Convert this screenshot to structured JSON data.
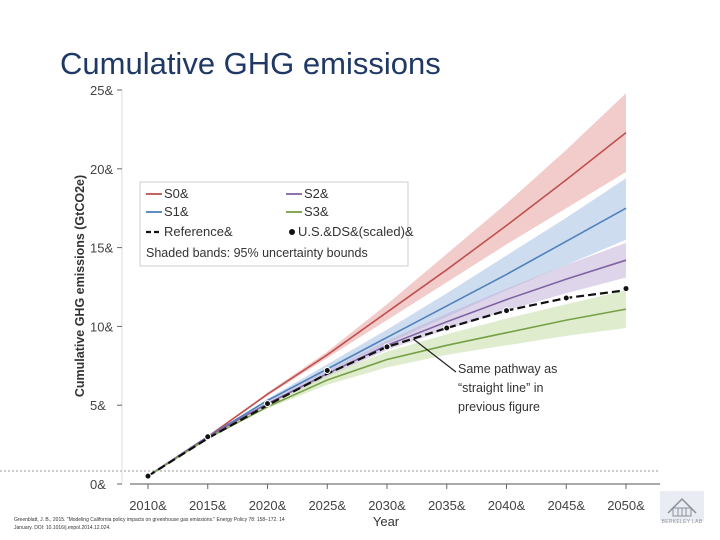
{
  "slide": {
    "title": "Cumulative GHG emissions",
    "citation_line1": "Greenblatt, J. B., 2015. \"Modeling California policy impacts on greenhouse gas emissions.\" Energy Policy 78: 158–172. 14",
    "citation_line2": "January. DOI: 10.1016/j.enpol.2014.12.024.",
    "logo_text": "BERKELEY LAB"
  },
  "chart_data": {
    "type": "line",
    "title": "Cumulative GHG emissions",
    "xlabel": "Year",
    "ylabel": "Cumulative GHG emissions (GtCO2e)",
    "x": [
      2010,
      2015,
      2020,
      2025,
      2030,
      2035,
      2040,
      2045,
      2050
    ],
    "x_tick_labels": [
      "2010&",
      "2015&",
      "2020&",
      "2025&",
      "2030&",
      "2035&",
      "2040&",
      "2045&",
      "2050&"
    ],
    "y_ticks": [
      0,
      5,
      10,
      15,
      20,
      25
    ],
    "y_tick_labels": [
      "0&",
      "5&",
      "10&",
      "15&",
      "20&",
      "25&"
    ],
    "xlim": [
      2010,
      2050
    ],
    "ylim": [
      0,
      25
    ],
    "grid": false,
    "series": [
      {
        "name": "S0&",
        "color": "#c0504d",
        "band_color": "#e8a3a1",
        "x": [
          2010,
          2015,
          2020,
          2025,
          2030,
          2035,
          2040,
          2045,
          2050
        ],
        "values": [
          0.5,
          3.0,
          5.7,
          8.2,
          10.9,
          13.6,
          16.4,
          19.3,
          22.3
        ],
        "lower": [
          0.5,
          3.0,
          5.6,
          8.0,
          10.4,
          12.8,
          15.2,
          17.5,
          19.8
        ],
        "upper": [
          0.5,
          3.0,
          5.8,
          8.4,
          11.4,
          14.6,
          17.8,
          21.2,
          24.8
        ]
      },
      {
        "name": "S1&",
        "color": "#4f81bd",
        "band_color": "#a6c0e2",
        "x": [
          2010,
          2015,
          2020,
          2025,
          2030,
          2035,
          2040,
          2045,
          2050
        ],
        "values": [
          0.5,
          3.0,
          5.3,
          7.3,
          9.3,
          11.3,
          13.3,
          15.4,
          17.5
        ],
        "lower": [
          0.5,
          3.0,
          5.2,
          7.1,
          8.9,
          10.6,
          12.3,
          13.9,
          15.5
        ],
        "upper": [
          0.5,
          3.0,
          5.4,
          7.6,
          9.8,
          12.1,
          14.5,
          16.9,
          19.4
        ]
      },
      {
        "name": "S2&",
        "color": "#8064a2",
        "band_color": "#c2b2d8",
        "x": [
          2010,
          2015,
          2020,
          2025,
          2030,
          2035,
          2040,
          2045,
          2050
        ],
        "values": [
          0.5,
          3.0,
          5.1,
          7.0,
          8.8,
          10.3,
          11.7,
          13.0,
          14.2
        ],
        "lower": [
          0.5,
          3.0,
          5.0,
          6.8,
          8.5,
          9.8,
          11.0,
          12.1,
          13.1
        ],
        "upper": [
          0.5,
          3.0,
          5.2,
          7.2,
          9.1,
          10.8,
          12.4,
          13.9,
          15.3
        ]
      },
      {
        "name": "S3&",
        "color": "#77a046",
        "band_color": "#c5dca6",
        "x": [
          2010,
          2015,
          2020,
          2025,
          2030,
          2035,
          2040,
          2045,
          2050
        ],
        "values": [
          0.5,
          2.9,
          4.9,
          6.6,
          7.9,
          8.8,
          9.6,
          10.4,
          11.1
        ],
        "lower": [
          0.5,
          2.9,
          4.8,
          6.3,
          7.4,
          8.2,
          8.8,
          9.4,
          9.9
        ],
        "upper": [
          0.5,
          2.9,
          5.0,
          6.9,
          8.4,
          9.5,
          10.5,
          11.4,
          12.3
        ]
      },
      {
        "name": "Reference&",
        "color": "#111111",
        "dashed": true,
        "x": [
          2010,
          2015,
          2020,
          2025,
          2030,
          2035,
          2040,
          2045,
          2050
        ],
        "values": [
          0.5,
          2.9,
          5.0,
          7.0,
          8.7,
          9.9,
          11.0,
          11.8,
          12.3
        ]
      }
    ],
    "points": {
      "name": "U.S.&DS&(scaled)&",
      "x": [
        2010,
        2015,
        2020,
        2025,
        2030,
        2035,
        2040,
        2045,
        2050
      ],
      "values": [
        0.5,
        3.0,
        5.1,
        7.2,
        8.7,
        9.9,
        11.0,
        11.8,
        12.4
      ]
    },
    "legend_note": "Shaded bands: 95% uncertainty bounds",
    "legend_position": "top-left",
    "annotation": {
      "text_lines": [
        "Same pathway as",
        "“straight line” in",
        "previous figure"
      ],
      "target": {
        "x": 2032.2,
        "y": 9.2
      }
    }
  }
}
